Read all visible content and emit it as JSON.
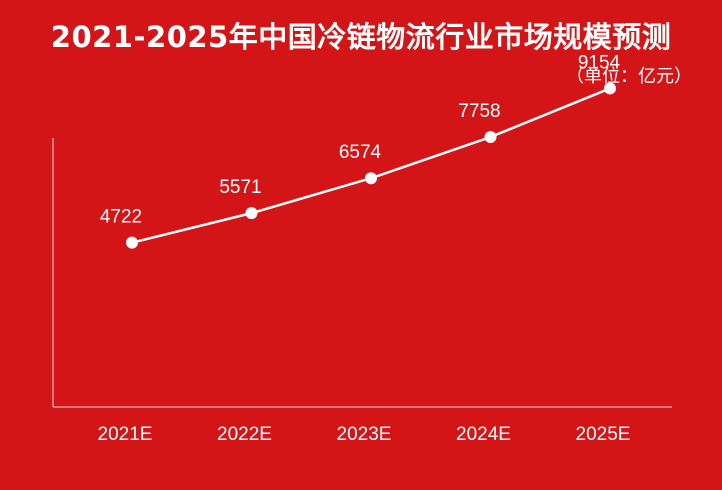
{
  "header": {
    "title": "2021-2025年中国冷链物流行业市场规模预测",
    "unit": "（单位：亿元）"
  },
  "colors": {
    "background": "#D41518",
    "line": "#FFFFFF",
    "text": "#FFFFFF"
  },
  "chart_data": {
    "type": "line",
    "title": "2021-2025年中国冷链物流行业市场规模预测",
    "unit": "（单位：亿元）",
    "categories": [
      "2021E",
      "2022E",
      "2023E",
      "2024E",
      "2025E"
    ],
    "series": [
      {
        "values": [
          4722,
          5571,
          6574,
          7758,
          9154
        ]
      }
    ],
    "data_labels": [
      "4722",
      "5571",
      "6574",
      "7758",
      "9154"
    ],
    "ylim": [
      0,
      12000
    ],
    "grid": false,
    "legend": "none"
  }
}
